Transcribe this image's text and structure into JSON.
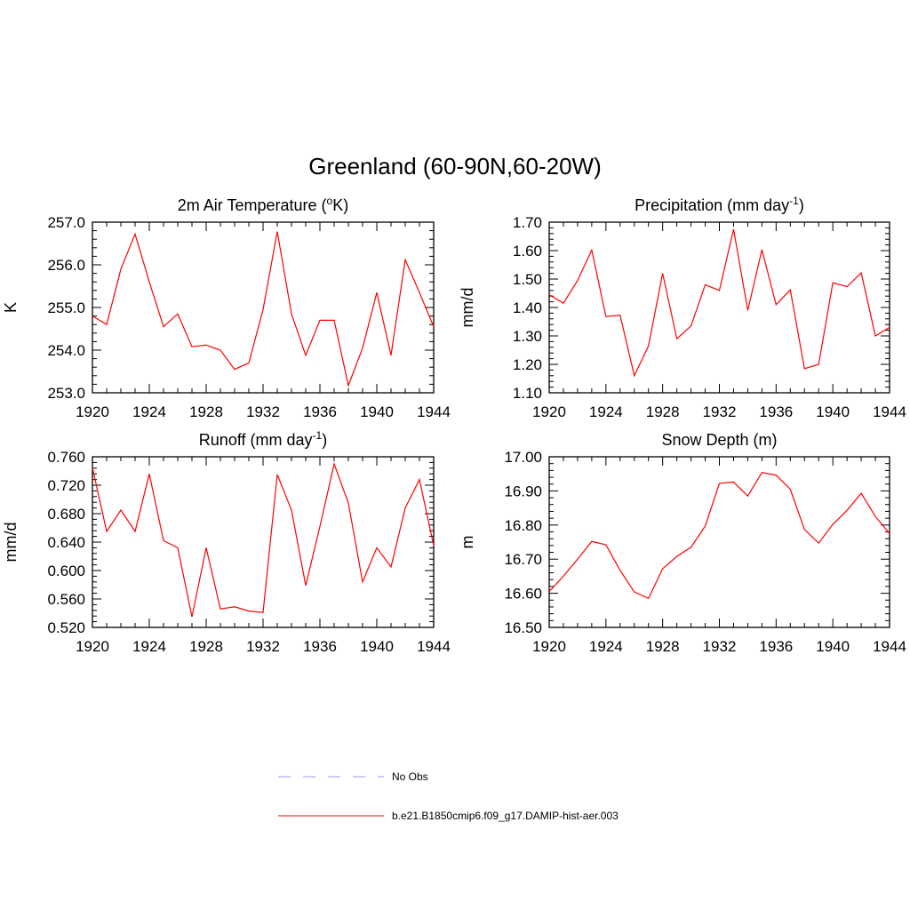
{
  "figure": {
    "title": "Greenland (60-90N,60-20W)"
  },
  "legend": {
    "entries": [
      {
        "label": "No Obs",
        "color": "#9999ee",
        "style": "dashed"
      },
      {
        "label": "b.e21.B1850cmip6.f09_g17.DAMIP-hist-aer.003",
        "color": "#ff0000",
        "style": "solid"
      }
    ]
  },
  "chart_data": [
    {
      "type": "line",
      "title": "2m Air Temperature (°K)",
      "title_parts": {
        "before": "2m Air Temperature (",
        "sup": "o",
        "after": "K)"
      },
      "ylabel": "K",
      "xlim": [
        1920,
        1944
      ],
      "ylim": [
        253.0,
        257.0
      ],
      "xticks": [
        "1920",
        "1924",
        "1928",
        "1932",
        "1936",
        "1940",
        "1944"
      ],
      "yticks": [
        "253.0",
        "254.0",
        "255.0",
        "256.0",
        "257.0"
      ],
      "series": [
        {
          "color": "#ff0000",
          "x": [
            1920,
            1921,
            1922,
            1923,
            1924,
            1925,
            1926,
            1927,
            1928,
            1929,
            1930,
            1931,
            1932,
            1933,
            1934,
            1935,
            1936,
            1937,
            1938,
            1939,
            1940,
            1941,
            1942,
            1943,
            1944
          ],
          "y": [
            254.8,
            254.6,
            255.9,
            256.72,
            255.6,
            254.55,
            254.85,
            254.08,
            254.12,
            254.0,
            253.55,
            253.7,
            254.95,
            256.78,
            254.85,
            253.88,
            254.7,
            254.7,
            253.17,
            254.05,
            255.35,
            253.88,
            256.12,
            255.35,
            254.55
          ]
        }
      ]
    },
    {
      "type": "line",
      "title": "Precipitation (mm day-1)",
      "title_parts": {
        "before": "Precipitation (mm day",
        "sup": "-1",
        "after": ")"
      },
      "ylabel": "mm/d",
      "xlim": [
        1920,
        1944
      ],
      "ylim": [
        1.1,
        1.7
      ],
      "xticks": [
        "1920",
        "1924",
        "1928",
        "1932",
        "1936",
        "1940",
        "1944"
      ],
      "yticks": [
        "1.10",
        "1.20",
        "1.30",
        "1.40",
        "1.50",
        "1.60",
        "1.70"
      ],
      "series": [
        {
          "color": "#ff0000",
          "x": [
            1920,
            1921,
            1922,
            1923,
            1924,
            1925,
            1926,
            1927,
            1928,
            1929,
            1930,
            1931,
            1932,
            1933,
            1934,
            1935,
            1936,
            1937,
            1938,
            1939,
            1940,
            1941,
            1942,
            1943,
            1944
          ],
          "y": [
            1.445,
            1.415,
            1.495,
            1.602,
            1.368,
            1.373,
            1.16,
            1.265,
            1.52,
            1.29,
            1.335,
            1.48,
            1.46,
            1.675,
            1.39,
            1.603,
            1.41,
            1.462,
            1.185,
            1.2,
            1.487,
            1.473,
            1.522,
            1.3,
            1.33
          ]
        }
      ]
    },
    {
      "type": "line",
      "title": "Runoff (mm day-1)",
      "title_parts": {
        "before": "Runoff (mm day",
        "sup": "-1",
        "after": ")"
      },
      "ylabel": "mm/d",
      "xlim": [
        1920,
        1944
      ],
      "ylim": [
        0.52,
        0.76
      ],
      "xticks": [
        "1920",
        "1924",
        "1928",
        "1932",
        "1936",
        "1940",
        "1944"
      ],
      "yticks": [
        "0.520",
        "0.560",
        "0.600",
        "0.640",
        "0.680",
        "0.720",
        "0.760"
      ],
      "series": [
        {
          "color": "#ff0000",
          "x": [
            1920,
            1921,
            1922,
            1923,
            1924,
            1925,
            1926,
            1927,
            1928,
            1929,
            1930,
            1931,
            1932,
            1933,
            1934,
            1935,
            1936,
            1937,
            1938,
            1939,
            1940,
            1941,
            1942,
            1943,
            1944
          ],
          "y": [
            0.745,
            0.655,
            0.685,
            0.655,
            0.736,
            0.642,
            0.632,
            0.535,
            0.632,
            0.546,
            0.549,
            0.543,
            0.541,
            0.735,
            0.685,
            0.579,
            0.662,
            0.75,
            0.695,
            0.584,
            0.632,
            0.605,
            0.688,
            0.728,
            0.635
          ]
        }
      ]
    },
    {
      "type": "line",
      "title": "Snow Depth (m)",
      "title_parts": {
        "before": "Snow Depth (m)",
        "sup": "",
        "after": ""
      },
      "ylabel": "m",
      "xlim": [
        1920,
        1944
      ],
      "ylim": [
        16.5,
        17.0
      ],
      "xticks": [
        "1920",
        "1924",
        "1928",
        "1932",
        "1936",
        "1940",
        "1944"
      ],
      "yticks": [
        "16.50",
        "16.60",
        "16.70",
        "16.80",
        "16.90",
        "17.00"
      ],
      "series": [
        {
          "color": "#ff0000",
          "x": [
            1920,
            1921,
            1922,
            1923,
            1924,
            1925,
            1926,
            1927,
            1928,
            1929,
            1930,
            1931,
            1932,
            1933,
            1934,
            1935,
            1936,
            1937,
            1938,
            1939,
            1940,
            1941,
            1942,
            1943,
            1944
          ],
          "y": [
            16.605,
            16.65,
            16.7,
            16.752,
            16.742,
            16.667,
            16.604,
            16.585,
            16.672,
            16.708,
            16.735,
            16.797,
            16.922,
            16.926,
            16.885,
            16.954,
            16.946,
            16.905,
            16.787,
            16.747,
            16.802,
            16.843,
            16.893,
            16.825,
            16.775
          ]
        }
      ]
    }
  ]
}
